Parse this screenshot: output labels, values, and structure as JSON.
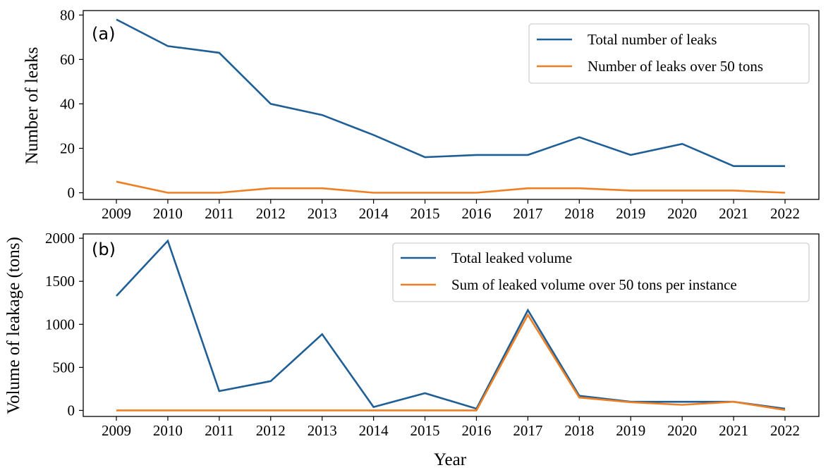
{
  "chart_data": [
    {
      "type": "line",
      "panel_label": "(a)",
      "x": [
        2009,
        2010,
        2011,
        2012,
        2013,
        2014,
        2015,
        2016,
        2017,
        2018,
        2019,
        2020,
        2021,
        2022
      ],
      "x_tick_labels": [
        "2009",
        "2010",
        "2011",
        "2012",
        "2013",
        "2014",
        "2015",
        "2016",
        "2017",
        "2018",
        "2019",
        "2020",
        "2021",
        "2022"
      ],
      "ylabel": "Number of leaks",
      "xlabel": "",
      "ylim": [
        -3,
        82
      ],
      "yticks": [
        0,
        20,
        40,
        60,
        80
      ],
      "legend_position": "top-right",
      "series": [
        {
          "name": "Total number of leaks",
          "color": "#1f5f96",
          "values": [
            78,
            66,
            63,
            40,
            35,
            26,
            16,
            17,
            17,
            25,
            17,
            22,
            12,
            12
          ]
        },
        {
          "name": "Number of leaks over 50 tons",
          "color": "#ef7f22",
          "values": [
            5,
            0,
            0,
            2,
            2,
            0,
            0,
            0,
            2,
            2,
            1,
            1,
            1,
            0
          ]
        }
      ]
    },
    {
      "type": "line",
      "panel_label": "(b)",
      "x": [
        2009,
        2010,
        2011,
        2012,
        2013,
        2014,
        2015,
        2016,
        2017,
        2018,
        2019,
        2020,
        2021,
        2022
      ],
      "x_tick_labels": [
        "2009",
        "2010",
        "2011",
        "2012",
        "2013",
        "2014",
        "2015",
        "2016",
        "2017",
        "2018",
        "2019",
        "2020",
        "2021",
        "2022"
      ],
      "ylabel": "Volume of leakage (tons)",
      "xlabel": "Year",
      "ylim": [
        -70,
        2050
      ],
      "yticks": [
        0,
        500,
        1000,
        1500,
        2000
      ],
      "legend_position": "top-right",
      "series": [
        {
          "name": "Total leaked volume",
          "color": "#1f5f96",
          "values": [
            1330,
            1970,
            225,
            340,
            885,
            40,
            200,
            20,
            1165,
            170,
            100,
            100,
            100,
            20
          ]
        },
        {
          "name": "Sum of leaked volume over 50 tons per instance",
          "color": "#ef7f22",
          "values": [
            0,
            0,
            0,
            0,
            0,
            0,
            0,
            0,
            1110,
            150,
            95,
            65,
            100,
            5
          ]
        }
      ]
    }
  ]
}
